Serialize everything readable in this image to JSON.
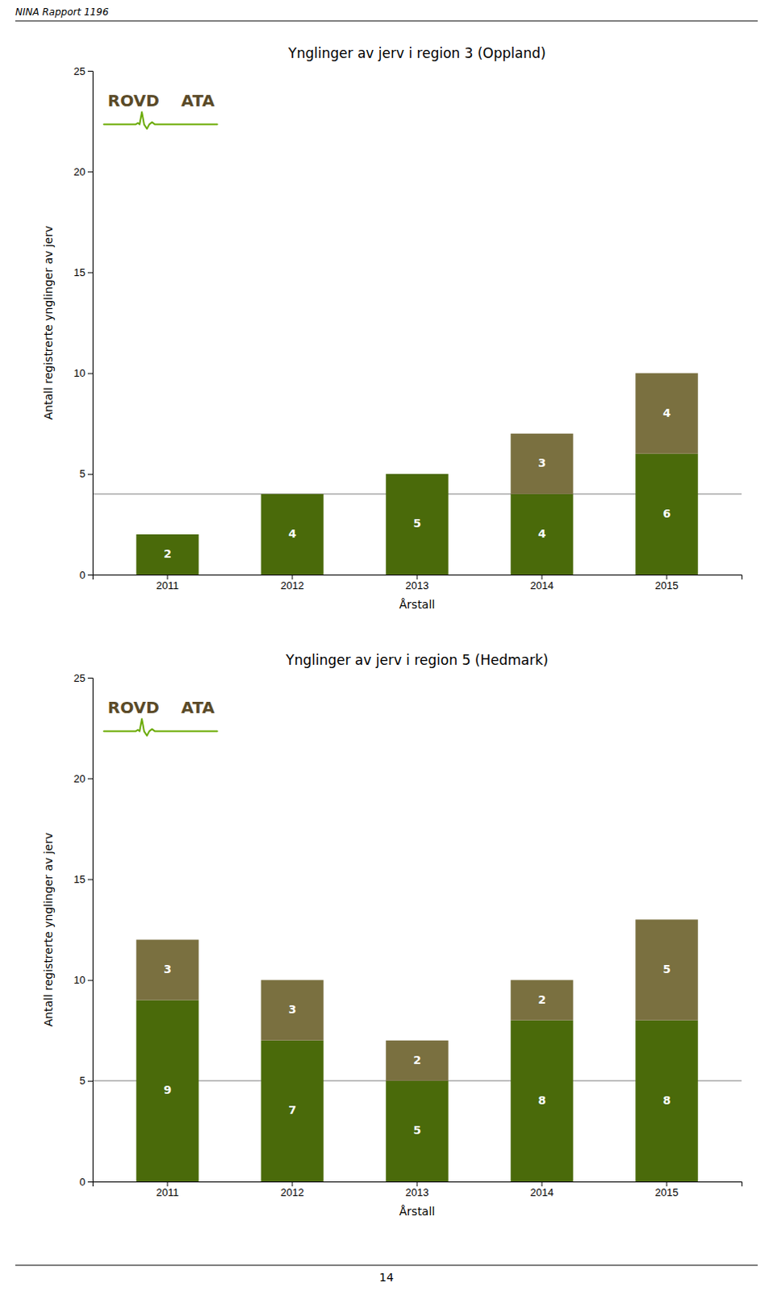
{
  "page": {
    "header": "NINA Rapport 1196",
    "footer": "14",
    "logo_text": [
      "ROVD",
      "ATA"
    ],
    "logo_text_color": "#5a4a28",
    "logo_wave_color": "#6aaa00",
    "background": "#ffffff"
  },
  "chart_data": [
    {
      "type": "bar",
      "stacked": true,
      "data_labels": true,
      "grid": false,
      "title": "Ynglinger av jerv i region 3 (Oppland)",
      "x_label": "Årstall",
      "y_label": "Antall registrerte ynglinger av jerv",
      "categories": [
        "2011",
        "2012",
        "2013",
        "2014",
        "2015"
      ],
      "series": [
        {
          "color": "#4a6a0a",
          "values": [
            2,
            4,
            5,
            4,
            6
          ]
        },
        {
          "color": "#7a7040",
          "values": [
            0,
            0,
            0,
            3,
            4
          ]
        }
      ],
      "reference_line": 4,
      "reference_line_color": "#aaaaaa",
      "ylim": [
        0,
        25
      ],
      "yticks": [
        0,
        5,
        10,
        15,
        20,
        25
      ]
    },
    {
      "type": "bar",
      "stacked": true,
      "data_labels": true,
      "grid": false,
      "title": "Ynglinger av jerv i region 5 (Hedmark)",
      "x_label": "Årstall",
      "y_label": "Antall registrerte ynglinger av jerv",
      "categories": [
        "2011",
        "2012",
        "2013",
        "2014",
        "2015"
      ],
      "series": [
        {
          "color": "#4a6a0a",
          "values": [
            9,
            7,
            5,
            8,
            8
          ]
        },
        {
          "color": "#7a7040",
          "values": [
            3,
            3,
            2,
            2,
            5
          ]
        }
      ],
      "reference_line": 5,
      "reference_line_color": "#aaaaaa",
      "ylim": [
        0,
        25
      ],
      "yticks": [
        0,
        5,
        10,
        15,
        20,
        25
      ]
    }
  ]
}
